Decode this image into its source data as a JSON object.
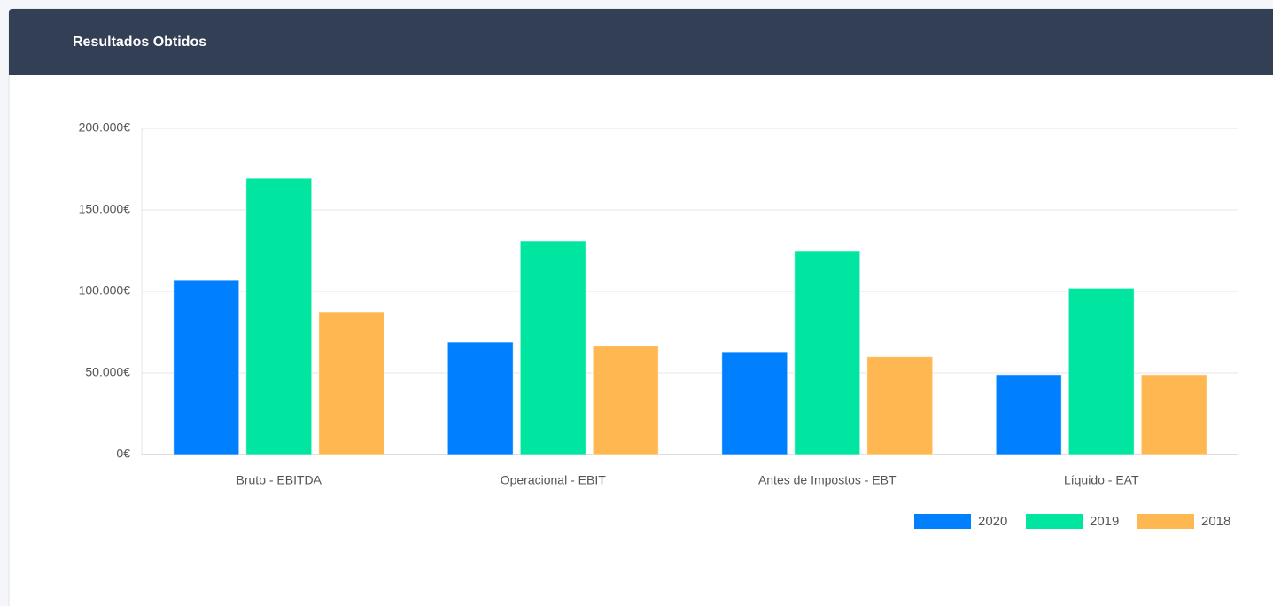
{
  "chart_data": {
    "type": "bar",
    "title": "Resultados Obtidos",
    "categories": [
      "Bruto - EBITDA",
      "Operacional - EBIT",
      "Antes de Impostos - EBT",
      "Líquido - EAT"
    ],
    "series": [
      {
        "name": "2020",
        "color": "#0080ff",
        "values": [
          107000,
          69000,
          63000,
          49000
        ]
      },
      {
        "name": "2019",
        "color": "#00e5a0",
        "values": [
          169500,
          131000,
          125000,
          102000
        ]
      },
      {
        "name": "2018",
        "color": "#ffb851",
        "values": [
          87500,
          66500,
          60000,
          49000
        ]
      }
    ],
    "ylim": [
      0,
      200000
    ],
    "yticks": [
      {
        "value": 0,
        "label": "0€"
      },
      {
        "value": 50000,
        "label": "50.000€"
      },
      {
        "value": 100000,
        "label": "100.000€"
      },
      {
        "value": 150000,
        "label": "150.000€"
      },
      {
        "value": 200000,
        "label": "200.000€"
      }
    ],
    "grid": true,
    "legend": "bottom-right"
  }
}
